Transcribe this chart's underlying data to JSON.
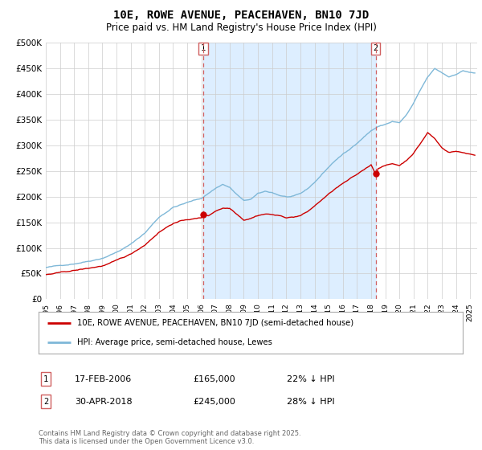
{
  "title": "10E, ROWE AVENUE, PEACEHAVEN, BN10 7JD",
  "subtitle": "Price paid vs. HM Land Registry's House Price Index (HPI)",
  "legend_line1": "10E, ROWE AVENUE, PEACEHAVEN, BN10 7JD (semi-detached house)",
  "legend_line2": "HPI: Average price, semi-detached house, Lewes",
  "footer": "Contains HM Land Registry data © Crown copyright and database right 2025.\nThis data is licensed under the Open Government Licence v3.0.",
  "annotation1": {
    "num": "1",
    "date": "17-FEB-2006",
    "price": "£165,000",
    "pct": "22% ↓ HPI"
  },
  "annotation2": {
    "num": "2",
    "date": "30-APR-2018",
    "price": "£245,000",
    "pct": "28% ↓ HPI"
  },
  "hpi_color": "#7fb8d8",
  "price_color": "#cc0000",
  "vline_color": "#d06060",
  "shade_color": "#ddeeff",
  "background_color": "#ffffff",
  "plot_bg_color": "#ffffff",
  "grid_color": "#cccccc",
  "ylim": [
    0,
    500000
  ],
  "yticks": [
    0,
    50000,
    100000,
    150000,
    200000,
    250000,
    300000,
    350000,
    400000,
    450000,
    500000
  ],
  "ytick_labels": [
    "£0",
    "£50K",
    "£100K",
    "£150K",
    "£200K",
    "£250K",
    "£300K",
    "£350K",
    "£400K",
    "£450K",
    "£500K"
  ],
  "xlim_start": 1995.0,
  "xlim_end": 2025.5,
  "marker1_year": 2006.12,
  "marker1_price": 165000,
  "marker2_year": 2018.33,
  "marker2_price": 245000
}
